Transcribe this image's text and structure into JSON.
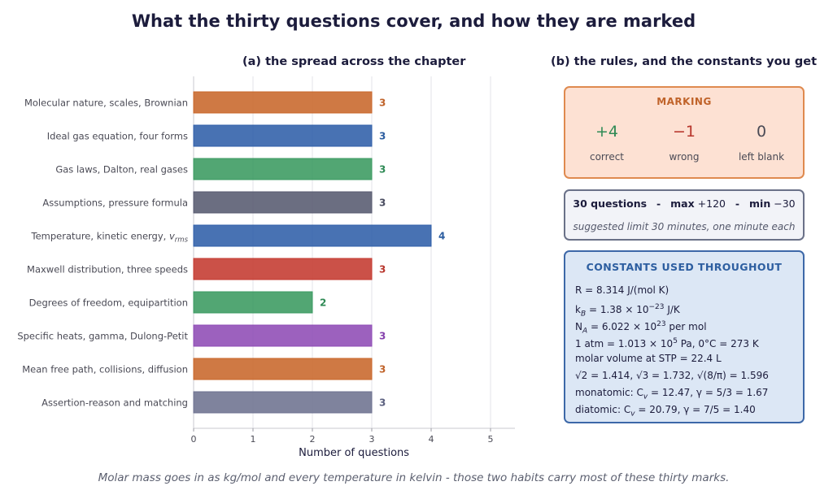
{
  "title": "What the thirty questions cover, and how they are marked",
  "panel_a_title": "(a) the spread across the chapter",
  "panel_b_title": "(b) the rules, and the constants you get",
  "chart_data": {
    "type": "bar",
    "orientation": "horizontal",
    "title": "(a) the spread across the chapter",
    "xlabel": "Number of questions",
    "ylabel": "",
    "xlim": [
      0,
      5.4
    ],
    "xticks": [
      0,
      1,
      2,
      3,
      4,
      5
    ],
    "grid": "vertical",
    "categories": [
      "Molecular nature, scales, Brownian",
      "Ideal gas equation, four forms",
      "Gas laws, Dalton, real gases",
      "Assumptions, pressure formula",
      "Temperature, kinetic energy, v_rms",
      "Maxwell distribution, three speeds",
      "Degrees of freedom, equipartition",
      "Specific heats, gamma, Dulong-Petit",
      "Mean free path, collisions, diffusion",
      "Assertion-reason and matching"
    ],
    "values": [
      3,
      3,
      3,
      3,
      4,
      3,
      2,
      3,
      3,
      3
    ],
    "bar_colors": [
      "#c8662a",
      "#2f5fa8",
      "#3a9a60",
      "#575a70",
      "#2f5fa8",
      "#c4392f",
      "#3a9a60",
      "#8e4bb5",
      "#c8662a",
      "#6d7290"
    ],
    "label_colors": [
      "#c0632a",
      "#2d5ea0",
      "#2f8a55",
      "#4a4d60",
      "#2d5ea0",
      "#b8362c",
      "#2f8a55",
      "#8642ad",
      "#c0632a",
      "#5c6180"
    ]
  },
  "marking": {
    "title": "MARKING",
    "items": [
      {
        "value": "+4",
        "label": "correct",
        "color": "#2f8a55"
      },
      {
        "value": "−1",
        "label": "wrong",
        "color": "#b8362c"
      },
      {
        "value": "0",
        "label": "left blank",
        "color": "#4a4a55"
      }
    ]
  },
  "limits": {
    "questions": "30 questions",
    "sep1": "-",
    "max_label": "max",
    "max_value": "+120",
    "sep2": "-",
    "min_label": "min",
    "min_value": "−30",
    "note": "suggested limit 30 minutes, one minute each"
  },
  "constants": {
    "title": "CONSTANTS USED THROUGHOUT",
    "lines": [
      "R = 8.314 J/(mol K)",
      "k_B = 1.38 × 10^−23 J/K",
      "N_A = 6.022 × 10^23 per mol",
      "1 atm = 1.013 × 10^5 Pa,   0°C = 273 K",
      "molar volume at STP = 22.4 L",
      "√2 = 1.414,   √3 = 1.732,   √(8/π) = 1.596",
      "monatomic: C_v = 12.47,   γ = 5/3 = 1.67",
      "diatomic: C_v = 20.79,   γ = 7/5 = 1.40"
    ]
  },
  "footer": "Molar mass goes in as kg/mol and every temperature in kelvin - those two habits carry most of these thirty marks."
}
